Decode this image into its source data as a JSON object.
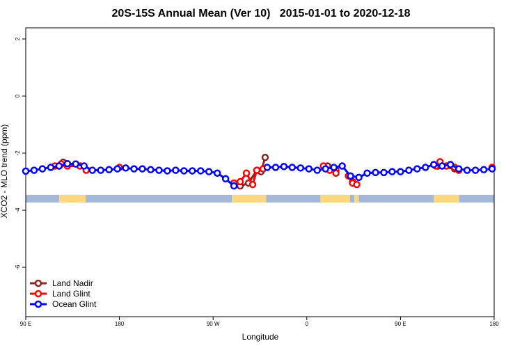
{
  "chart_data": {
    "type": "line",
    "title": "20S-15S Annual Mean (Ver 10)   2015-01-01 to 2020-12-18",
    "x_label": "Longitude",
    "y_label": "XCO2 - MLO trend (ppm)",
    "xlim": [
      90,
      540
    ],
    "ylim": [
      -7.73,
      2.39
    ],
    "xticks": [
      {
        "value": 90,
        "label": "90 E"
      },
      180,
      {
        "value": 270,
        "label": "90 W"
      },
      {
        "value": 360,
        "label": "0"
      },
      {
        "value": 450,
        "label": "90 E"
      },
      {
        "value": 540,
        "label": "180"
      }
    ],
    "yticks": [
      2,
      0,
      -2,
      -4,
      -6
    ],
    "legend_position": "bottom-left",
    "surface_band": {
      "ylim": [
        -3.73,
        -3.46
      ],
      "ocean_color": "#a3b8d8",
      "land_color": "#fcd77f",
      "land_ranges": [
        [
          122,
          147.5
        ],
        [
          288,
          321
        ],
        [
          373,
          401.6
        ],
        [
          405.6,
          410
        ],
        [
          482,
          506.5
        ]
      ]
    },
    "series": [
      {
        "name": "Land Nadir",
        "color": "#8b2323",
        "x": [
          122,
          126,
          200,
          290,
          296,
          304,
          312,
          316,
          320,
          350,
          380,
          388,
          396,
          404,
          440,
          486,
          502
        ],
        "values": [
          -2.45,
          -2.32,
          null,
          -3.05,
          -3.15,
          -3.05,
          -2.6,
          -2.65,
          -2.15,
          null,
          -2.45,
          -2.6,
          null,
          -3.0,
          null,
          -2.45,
          -2.55
        ]
      },
      {
        "name": "Land Glint",
        "color": "#ff0000",
        "x": [
          118,
          124,
          130,
          142,
          148,
          164,
          180,
          240,
          290,
          296,
          302,
          308,
          312,
          318,
          350,
          376,
          382,
          388,
          394,
          400,
          404,
          408,
          450,
          484,
          488,
          494,
          502,
          506,
          520,
          538
        ],
        "values": [
          -2.45,
          -2.38,
          -2.45,
          -2.45,
          -2.6,
          null,
          -2.5,
          null,
          -3.05,
          -3.0,
          -2.7,
          -3.1,
          -2.6,
          -2.55,
          null,
          -2.45,
          -2.6,
          -2.7,
          null,
          -2.8,
          -3.05,
          -3.1,
          null,
          -2.45,
          -2.3,
          -2.45,
          -2.5,
          -2.6,
          null,
          -2.5
        ]
      },
      {
        "name": "Ocean Glint",
        "color": "#0000ff",
        "x": [
          90,
          98,
          106,
          114,
          122,
          130,
          138,
          146,
          154,
          162,
          170,
          178,
          186,
          194,
          202,
          210,
          218,
          226,
          234,
          242,
          250,
          258,
          266,
          274,
          282,
          290,
          298,
          322,
          330,
          338,
          346,
          354,
          362,
          370,
          378,
          386,
          394,
          402,
          410,
          418,
          426,
          434,
          442,
          450,
          458,
          466,
          474,
          482,
          490,
          498,
          506,
          514,
          522,
          530,
          538
        ],
        "values": [
          -2.63,
          -2.6,
          -2.55,
          -2.5,
          -2.45,
          -2.37,
          -2.38,
          -2.45,
          -2.6,
          -2.6,
          -2.58,
          -2.55,
          -2.52,
          -2.55,
          -2.55,
          -2.58,
          -2.6,
          -2.62,
          -2.6,
          -2.62,
          -2.62,
          -2.62,
          -2.65,
          -2.7,
          -2.9,
          -3.15,
          null,
          -2.5,
          -2.5,
          -2.47,
          -2.5,
          -2.52,
          -2.55,
          -2.6,
          -2.55,
          -2.5,
          -2.45,
          -2.8,
          -2.85,
          -2.7,
          -2.68,
          -2.68,
          -2.65,
          -2.65,
          -2.6,
          -2.55,
          -2.5,
          -2.4,
          -2.45,
          -2.4,
          -2.55,
          -2.6,
          -2.6,
          -2.58,
          -2.55
        ]
      }
    ]
  }
}
